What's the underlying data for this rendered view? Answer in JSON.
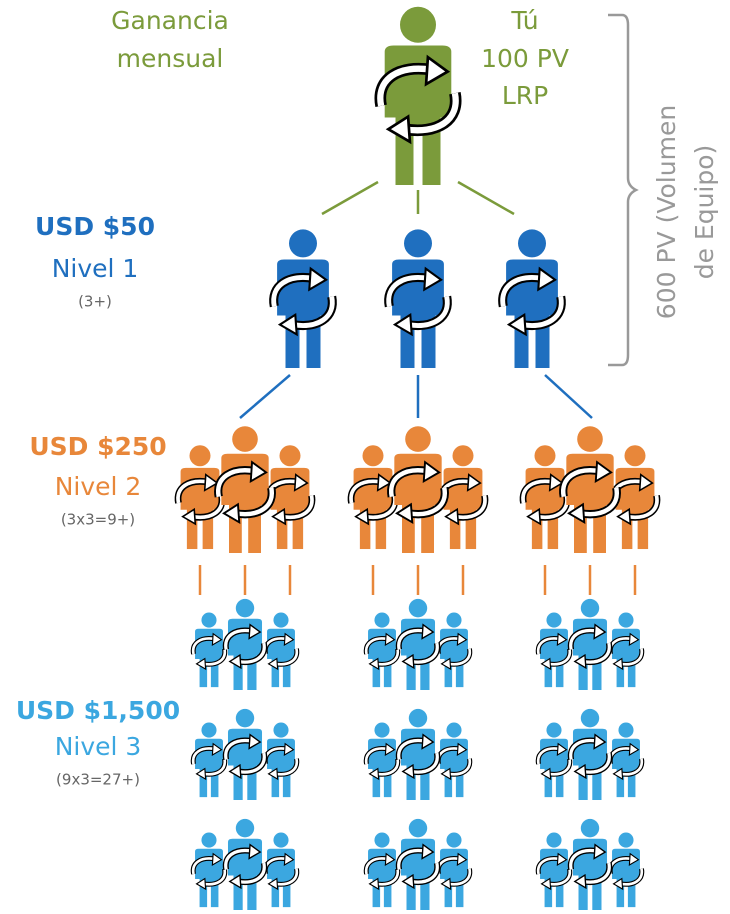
{
  "header": {
    "title_lines": [
      "Ganancia",
      "mensual"
    ]
  },
  "you": {
    "lines": [
      "Tú",
      "100 PV",
      "LRP"
    ]
  },
  "team_volume": {
    "lines": [
      "600 PV (Volumen",
      "de Equipo)"
    ]
  },
  "levels": [
    {
      "earning": "USD $50",
      "label": "Nivel 1",
      "formula": "(3+)"
    },
    {
      "earning": "USD $250",
      "label": "Nivel 2",
      "formula": "(3x3=9+)"
    },
    {
      "earning": "USD $1,500",
      "label": "Nivel 3",
      "formula": "(9x3=27+)"
    }
  ]
}
